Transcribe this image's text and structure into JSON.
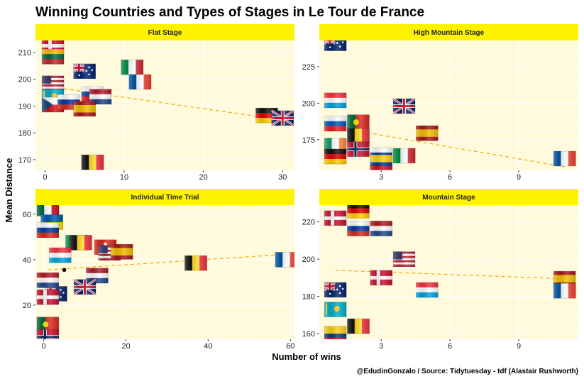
{
  "page": {
    "title": "Winning Countries and Types of Stages in Le Tour de France",
    "caption": "@EdudinGonzalo / Source: Tidytuesday - tdf (Alastair Rushworth)"
  },
  "chart_data": {
    "type": "scatter",
    "title": "Winning Countries and Types of Stages in Le Tour de France",
    "xlabel": "Number of wins",
    "ylabel": "Mean Distance",
    "caption": "@EdudinGonzalo / Source: Tidytuesday - tdf (Alastair Rushworth)",
    "marker": "country flag",
    "trend_line": {
      "style": "dashed",
      "color": "#FFA500"
    },
    "colors": {
      "panel_bg": "#FFFADC",
      "grid": "#FFFFFF",
      "strip_bg": "#FFF200",
      "trend": "#FFA500"
    },
    "facets": [
      {
        "name": "Flat Stage",
        "xlim": [
          -1.2,
          31.5
        ],
        "ylim": [
          166,
          214.5
        ],
        "xticks": [
          0,
          10,
          20,
          30
        ],
        "yticks": [
          170,
          180,
          190,
          200,
          210
        ],
        "trend": [
          [
            0,
            197.5
          ],
          [
            30,
            184.8
          ]
        ],
        "points": [
          {
            "country": "DK",
            "x": 1,
            "y": 212.5
          },
          {
            "country": "LT",
            "x": 1,
            "y": 208.5
          },
          {
            "country": "AU",
            "x": 5,
            "y": 203
          },
          {
            "country": "IT",
            "x": 11,
            "y": 204.5
          },
          {
            "country": "FR",
            "x": 12,
            "y": 199
          },
          {
            "country": "US",
            "x": 1,
            "y": 198.5
          },
          {
            "country": "SK",
            "x": 6,
            "y": 194.5
          },
          {
            "country": "NL",
            "x": 7,
            "y": 193.5
          },
          {
            "country": "KZ",
            "x": 1,
            "y": 193.5
          },
          {
            "country": "CZ",
            "x": 1,
            "y": 190.5
          },
          {
            "country": "RU",
            "x": 3,
            "y": 191.5
          },
          {
            "country": "ES",
            "x": 5,
            "y": 189
          },
          {
            "country": "DE",
            "x": 28,
            "y": 186.5
          },
          {
            "country": "GB",
            "x": 30,
            "y": 185.5
          },
          {
            "country": "BE",
            "x": 6,
            "y": 169
          }
        ]
      },
      {
        "name": "High Mountain Stage",
        "xlim": [
          0.3,
          11.6
        ],
        "ylim": [
          154,
          243
        ],
        "xticks": [
          3,
          6,
          9
        ],
        "yticks": [
          175,
          200,
          225
        ],
        "trend": [
          [
            1,
            183.5
          ],
          [
            11,
            156.5
          ]
        ],
        "points": [
          {
            "country": "AU",
            "x": 1,
            "y": 241
          },
          {
            "country": "LU",
            "x": 1,
            "y": 202
          },
          {
            "country": "GB",
            "x": 4,
            "y": 198
          },
          {
            "country": "PT",
            "x": 2,
            "y": 187
          },
          {
            "country": "SI",
            "x": 1,
            "y": 186
          },
          {
            "country": "ES",
            "x": 5,
            "y": 179.5
          },
          {
            "country": "BE",
            "x": 2,
            "y": 177.5
          },
          {
            "country": "IE",
            "x": 1,
            "y": 171
          },
          {
            "country": "NO",
            "x": 2,
            "y": 168.5
          },
          {
            "country": "DE",
            "x": 1,
            "y": 163.5
          },
          {
            "country": "RU",
            "x": 3,
            "y": 164.5
          },
          {
            "country": "IT",
            "x": 4,
            "y": 164
          },
          {
            "country": "CO",
            "x": 3,
            "y": 159.5
          },
          {
            "country": "FR",
            "x": 11,
            "y": 162
          }
        ]
      },
      {
        "name": "Individual Time Trial",
        "xlim": [
          -2,
          61
        ],
        "ylim": [
          5,
          64
        ],
        "xticks": [
          0,
          20,
          40,
          60
        ],
        "yticks": [
          20,
          40,
          60
        ],
        "trend": [
          [
            1,
            35.5
          ],
          [
            60,
            42.5
          ]
        ],
        "points": [
          {
            "country": "MX",
            "x": 1,
            "y": 62.5
          },
          {
            "country": "UA",
            "x": 2,
            "y": 56.5
          },
          {
            "country": "RU",
            "x": 1,
            "y": 53
          },
          {
            "country": "IT",
            "x": 8,
            "y": 47.5
          },
          {
            "country": "BE",
            "x": 9,
            "y": 47.5
          },
          {
            "country": "CH",
            "x": 15,
            "y": 45.5
          },
          {
            "country": "US",
            "x": 16,
            "y": 43
          },
          {
            "country": "ES",
            "x": 19,
            "y": 43.5
          },
          {
            "country": "LU",
            "x": 4,
            "y": 42
          },
          {
            "country": "BE",
            "x": 37,
            "y": 38.5
          },
          {
            "country": "FR",
            "x": 59,
            "y": 40
          },
          {
            "country": "NL",
            "x": 13,
            "y": 33
          },
          {
            "country": "AU",
            "x": 3,
            "y": 25
          },
          {
            "country": "GB",
            "x": 10,
            "y": 28
          },
          {
            "country": "NL",
            "x": 1,
            "y": 31
          },
          {
            "country": "DK",
            "x": 1,
            "y": 23.5
          },
          {
            "country": "PT",
            "x": 1,
            "y": 11.5
          },
          {
            "country": "NO",
            "x": 1,
            "y": 6
          }
        ],
        "black_points": [
          {
            "x": 5,
            "y": 35.5
          }
        ]
      },
      {
        "name": "Mountain Stage",
        "xlim": [
          0.3,
          11.6
        ],
        "ylim": [
          157,
          229
        ],
        "xticks": [
          3,
          6,
          9
        ],
        "yticks": [
          160,
          180,
          200,
          220
        ],
        "trend": [
          [
            1,
            194
          ],
          [
            11,
            189.5
          ]
        ],
        "points": [
          {
            "country": "DK",
            "x": 1,
            "y": 222
          },
          {
            "country": "DE",
            "x": 2,
            "y": 226
          },
          {
            "country": "NL",
            "x": 3,
            "y": 216.5
          },
          {
            "country": "RU",
            "x": 2,
            "y": 216.5
          },
          {
            "country": "US",
            "x": 4,
            "y": 200
          },
          {
            "country": "DK",
            "x": 3,
            "y": 190
          },
          {
            "country": "AU",
            "x": 1,
            "y": 183.5
          },
          {
            "country": "LU",
            "x": 5,
            "y": 183.5
          },
          {
            "country": "ES",
            "x": 11,
            "y": 189.5
          },
          {
            "country": "FR",
            "x": 11,
            "y": 183
          },
          {
            "country": "KZ",
            "x": 1,
            "y": 173
          },
          {
            "country": "BE",
            "x": 2,
            "y": 164
          },
          {
            "country": "CO",
            "x": 1,
            "y": 160
          }
        ]
      }
    ]
  }
}
